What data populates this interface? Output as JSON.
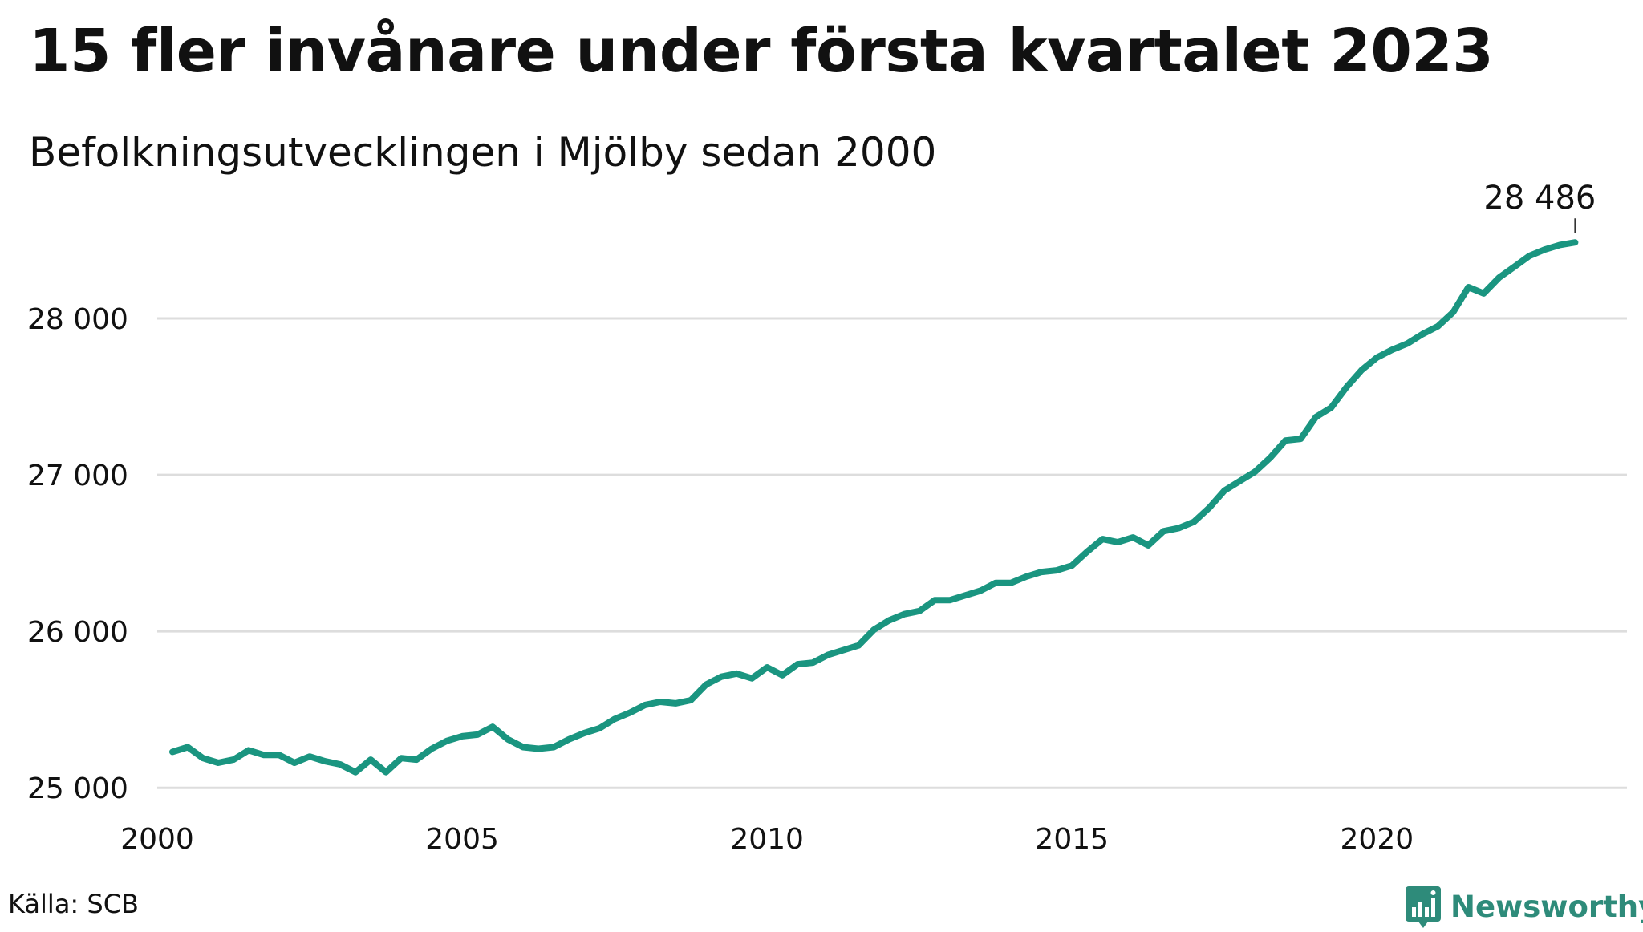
{
  "title": "15 fler invånare under första kvartalet 2023",
  "subtitle": "Befolkningsutvecklingen i Mjölby sedan 2000",
  "source": "Källa: SCB",
  "brand": {
    "name": "Newsworthy",
    "icon": "newsworthy-logo-icon",
    "color": "#2e8b7a"
  },
  "colors": {
    "line": "#1a9580",
    "grid": "#dddddd",
    "text": "#111111"
  },
  "chart_data": {
    "type": "line",
    "title": "15 fler invånare under första kvartalet 2023",
    "subtitle": "Befolkningsutvecklingen i Mjölby sedan 2000",
    "xlabel": "",
    "ylabel": "",
    "xlim": [
      2000,
      2024.1
    ],
    "ylim": [
      24950,
      28600
    ],
    "x_ticks": [
      2000,
      2005,
      2010,
      2015,
      2020
    ],
    "x_tick_labels": [
      "2000",
      "2005",
      "2010",
      "2015",
      "2020"
    ],
    "y_ticks": [
      25000,
      26000,
      27000,
      28000
    ],
    "y_tick_labels": [
      "25 000",
      "26 000",
      "27 000",
      "28 000"
    ],
    "grid": "horizontal",
    "legend": "none",
    "series": [
      {
        "values": [
          25230,
          25260,
          25190,
          25160,
          25180,
          25240,
          25210,
          25210,
          25160,
          25200,
          25170,
          25150,
          25100,
          25180,
          25100,
          25190,
          25180,
          25250,
          25300,
          25330,
          25340,
          25390,
          25310,
          25260,
          25250,
          25260,
          25310,
          25350,
          25380,
          25440,
          25480,
          25530,
          25550,
          25540,
          25560,
          25660,
          25710,
          25730,
          25700,
          25770,
          25720,
          25790,
          25800,
          25850,
          25880,
          25910,
          26010,
          26070,
          26110,
          26130,
          26200,
          26200,
          26230,
          26260,
          26310,
          26310,
          26350,
          26380,
          26390,
          26420,
          26510,
          26590,
          26570,
          26600,
          26550,
          26640,
          26660,
          26700,
          26790,
          26900,
          26960,
          27020,
          27110,
          27220,
          27230,
          27370,
          27430,
          27560,
          27670,
          27750,
          27800,
          27840,
          27900,
          27950,
          28040,
          28200,
          28160,
          28260,
          28330,
          28400,
          28440,
          28470,
          28486
        ]
      }
    ],
    "x_start": 2000.25,
    "x_step": 0.25,
    "annotations": [
      {
        "text": "28 486",
        "x": 2023.25,
        "y": 28486
      }
    ]
  }
}
